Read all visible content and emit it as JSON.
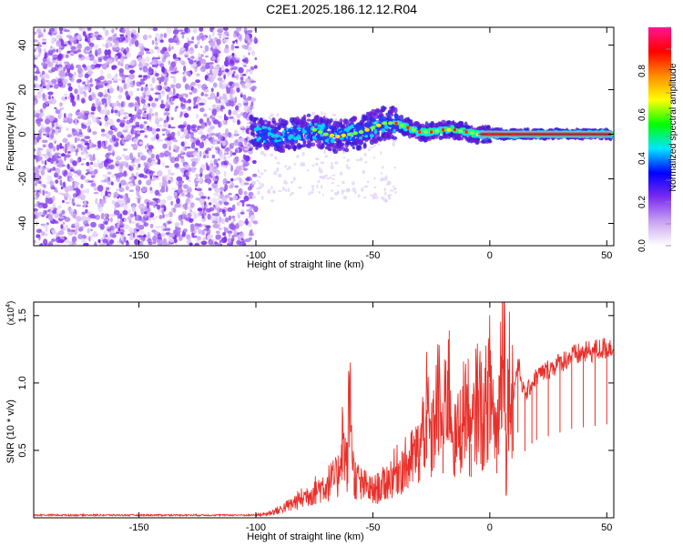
{
  "title": "C2E1.2025.186.12.12.R04",
  "chart_data": [
    {
      "type": "heatmap",
      "title": "C2E1.2025.186.12.12.R04",
      "xlabel": "Height of straight line (km)",
      "ylabel": "Frequency (Hz)",
      "xlim": [
        -195,
        53
      ],
      "ylim": [
        -50,
        48
      ],
      "xticks": [
        -150,
        -100,
        -50,
        0,
        50
      ],
      "xtick_labels": [
        "-150",
        "-100",
        "-50",
        "0",
        "50"
      ],
      "yticks": [
        -40,
        -20,
        0,
        20,
        40
      ],
      "ytick_labels": [
        "-40",
        "-20",
        "0",
        "20",
        "40"
      ],
      "noise_region_x": [
        -195,
        -100
      ],
      "ridge": {
        "x": [
          -102,
          -95,
          -90,
          -85,
          -80,
          -75,
          -70,
          -65,
          -60,
          -55,
          -50,
          -45,
          -40,
          -35,
          -30,
          -25,
          -20,
          -15,
          -10,
          -5,
          0,
          5,
          10,
          20,
          30,
          40,
          52
        ],
        "frequency": [
          1,
          0,
          -1,
          0,
          1,
          2,
          0,
          -1,
          0,
          1,
          3,
          5,
          5,
          3,
          1,
          1,
          2,
          2,
          1,
          0,
          0,
          0,
          0,
          0,
          0,
          0,
          0
        ]
      },
      "colorbar": {
        "label": "Normalized spectral amplitude",
        "range": [
          0,
          1
        ],
        "ticks": [
          0.0,
          0.2,
          0.4,
          0.6,
          0.8
        ],
        "tick_labels": [
          "0.0",
          "0.2",
          "0.4",
          "0.6",
          "0.8"
        ],
        "colors": [
          "#ffffff",
          "#c9a2f2",
          "#7b2cf0",
          "#0000ff",
          "#00e5ff",
          "#00ff00",
          "#ffff00",
          "#ff8c00",
          "#ff0000",
          "#ff1493"
        ]
      },
      "grid": false
    },
    {
      "type": "line",
      "xlabel": "Height of straight line (km)",
      "ylabel": "SNR (10 * v/v)",
      "scale_label": "(x10",
      "scale_exponent": "4",
      "xlim": [
        -195,
        53
      ],
      "ylim": [
        0,
        1.6
      ],
      "xticks": [
        -150,
        -100,
        -50,
        0,
        50
      ],
      "xtick_labels": [
        "-150",
        "-100",
        "-50",
        "0",
        "50"
      ],
      "yticks": [
        0.5,
        1.0,
        1.5
      ],
      "ytick_labels": [
        "0.5",
        "1.0",
        "1.5"
      ],
      "color": "#e8302a",
      "series": [
        {
          "x": [
            -195,
            -180,
            -160,
            -140,
            -120,
            -105,
            -100,
            -95,
            -90,
            -85,
            -80,
            -75,
            -70,
            -65,
            -63,
            -61,
            -60,
            -58,
            -55,
            -50,
            -45,
            -40,
            -35,
            -30,
            -27,
            -25,
            -22,
            -20,
            -18,
            -15,
            -12,
            -10,
            -8,
            -5,
            -3,
            0,
            3,
            5,
            6,
            7,
            8,
            10,
            12,
            15,
            18,
            20,
            25,
            30,
            35,
            40,
            45,
            50,
            53
          ],
          "y": [
            0.02,
            0.02,
            0.02,
            0.02,
            0.02,
            0.02,
            0.02,
            0.03,
            0.06,
            0.1,
            0.15,
            0.2,
            0.25,
            0.3,
            0.62,
            0.35,
            0.95,
            0.3,
            0.25,
            0.2,
            0.25,
            0.35,
            0.4,
            0.5,
            0.8,
            0.55,
            0.9,
            0.6,
            1.08,
            0.55,
            0.7,
            0.9,
            0.55,
            0.95,
            0.7,
            1.0,
            0.6,
            1.2,
            1.65,
            0.3,
            1.1,
            0.9,
            1.15,
            0.9,
            1.0,
            1.05,
            1.1,
            1.15,
            1.2,
            1.22,
            1.24,
            1.26,
            1.28
          ]
        }
      ],
      "grid": false
    }
  ]
}
